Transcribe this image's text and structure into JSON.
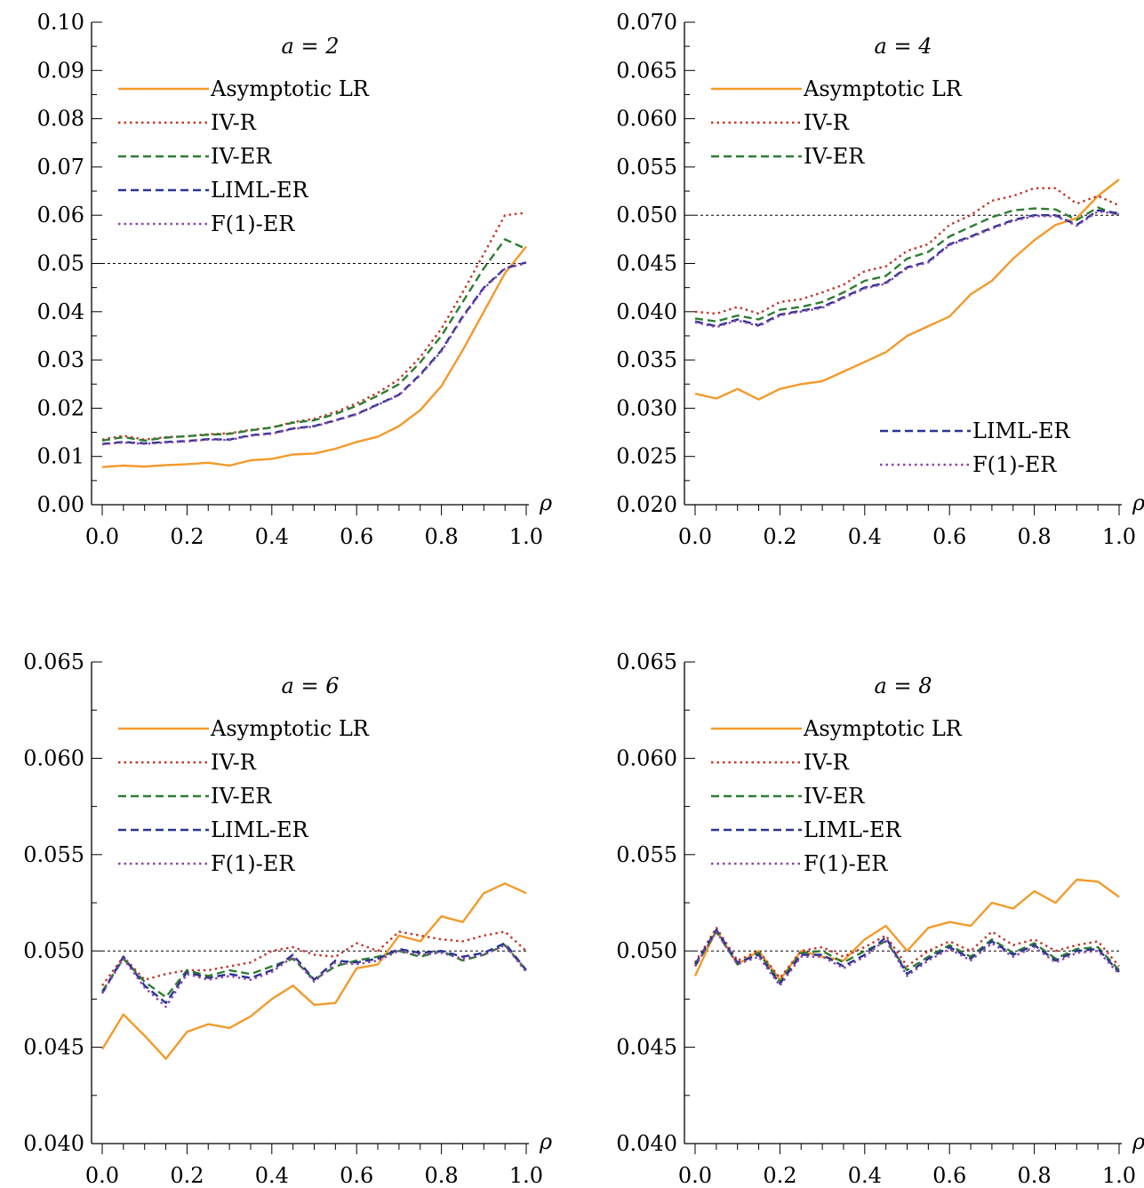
{
  "chart_data": [
    {
      "type": "line",
      "title": "a = 2",
      "xlabel": "ρ",
      "ylabel": "",
      "xlim": [
        0,
        1
      ],
      "ylim": [
        0,
        0.1
      ],
      "x_ticks": [
        "0.0",
        "0.2",
        "0.4",
        "0.6",
        "0.8",
        "1.0"
      ],
      "y_ticks": [
        "0.00",
        "0.01",
        "0.02",
        "0.03",
        "0.04",
        "0.05",
        "0.06",
        "0.07",
        "0.08",
        "0.09",
        "0.10"
      ],
      "reference_line": 0.05,
      "legend_position": "top-left",
      "legend_split": false,
      "x": [
        0.0,
        0.05,
        0.1,
        0.15,
        0.2,
        0.25,
        0.3,
        0.35,
        0.4,
        0.45,
        0.5,
        0.55,
        0.6,
        0.65,
        0.7,
        0.75,
        0.8,
        0.85,
        0.9,
        0.95,
        1.0
      ],
      "series": [
        {
          "name": "Asymptotic LR",
          "values": [
            0.0078,
            0.0081,
            0.0079,
            0.0082,
            0.0084,
            0.0087,
            0.0081,
            0.0092,
            0.0095,
            0.0104,
            0.0106,
            0.0116,
            0.013,
            0.0141,
            0.0163,
            0.0196,
            0.0246,
            0.032,
            0.04,
            0.048,
            0.0535
          ]
        },
        {
          "name": "IV-R",
          "values": [
            0.0135,
            0.0143,
            0.0135,
            0.014,
            0.0142,
            0.0146,
            0.0148,
            0.0155,
            0.016,
            0.0171,
            0.0178,
            0.0192,
            0.021,
            0.0232,
            0.026,
            0.0306,
            0.0365,
            0.044,
            0.052,
            0.06,
            0.0605
          ]
        },
        {
          "name": "IV-ER",
          "values": [
            0.0133,
            0.014,
            0.0133,
            0.0139,
            0.0142,
            0.0145,
            0.0147,
            0.0154,
            0.016,
            0.017,
            0.0175,
            0.0188,
            0.0205,
            0.0226,
            0.025,
            0.0295,
            0.035,
            0.042,
            0.049,
            0.055,
            0.053
          ]
        },
        {
          "name": "LIML-ER",
          "values": [
            0.0126,
            0.013,
            0.0127,
            0.013,
            0.0132,
            0.0136,
            0.0135,
            0.0144,
            0.0148,
            0.0158,
            0.0163,
            0.0175,
            0.0188,
            0.0208,
            0.0228,
            0.027,
            0.032,
            0.039,
            0.045,
            0.049,
            0.0502
          ]
        },
        {
          "name": "F(1)-ER",
          "values": [
            0.0125,
            0.0129,
            0.0126,
            0.0129,
            0.0131,
            0.0135,
            0.0134,
            0.0143,
            0.0147,
            0.0157,
            0.0162,
            0.0174,
            0.0187,
            0.0207,
            0.0227,
            0.0268,
            0.0318,
            0.0388,
            0.0448,
            0.0489,
            0.0501
          ]
        }
      ]
    },
    {
      "type": "line",
      "title": "a = 4",
      "xlabel": "ρ",
      "ylabel": "",
      "xlim": [
        0,
        1
      ],
      "ylim": [
        0.02,
        0.07
      ],
      "x_ticks": [
        "0.0",
        "0.2",
        "0.4",
        "0.6",
        "0.8",
        "1.0"
      ],
      "y_ticks": [
        "0.020",
        "0.025",
        "0.030",
        "0.035",
        "0.040",
        "0.045",
        "0.050",
        "0.055",
        "0.060",
        "0.065",
        "0.070"
      ],
      "reference_line": 0.05,
      "legend_position": "top-left",
      "legend_split": true,
      "x": [
        0.0,
        0.05,
        0.1,
        0.15,
        0.2,
        0.25,
        0.3,
        0.35,
        0.4,
        0.45,
        0.5,
        0.55,
        0.6,
        0.65,
        0.7,
        0.75,
        0.8,
        0.85,
        0.9,
        0.95,
        1.0
      ],
      "series": [
        {
          "name": "Asymptotic LR",
          "values": [
            0.0315,
            0.031,
            0.032,
            0.0309,
            0.032,
            0.0325,
            0.0328,
            0.0338,
            0.0348,
            0.0358,
            0.0375,
            0.0385,
            0.0395,
            0.0418,
            0.0432,
            0.0455,
            0.0474,
            0.049,
            0.0497,
            0.052,
            0.0537
          ]
        },
        {
          "name": "IV-R",
          "values": [
            0.04,
            0.0398,
            0.0405,
            0.0398,
            0.041,
            0.0413,
            0.042,
            0.0428,
            0.0442,
            0.0447,
            0.0463,
            0.047,
            0.049,
            0.05,
            0.0515,
            0.052,
            0.0528,
            0.0528,
            0.0512,
            0.052,
            0.051
          ]
        },
        {
          "name": "IV-ER",
          "values": [
            0.0393,
            0.039,
            0.0396,
            0.0392,
            0.0402,
            0.0405,
            0.041,
            0.042,
            0.0432,
            0.0437,
            0.0455,
            0.0462,
            0.0478,
            0.0488,
            0.0498,
            0.0505,
            0.0507,
            0.0506,
            0.0495,
            0.0508,
            0.05
          ]
        },
        {
          "name": "LIML-ER",
          "values": [
            0.039,
            0.0385,
            0.0392,
            0.0386,
            0.0397,
            0.0401,
            0.0405,
            0.0415,
            0.0425,
            0.043,
            0.0446,
            0.0452,
            0.047,
            0.0478,
            0.0487,
            0.0495,
            0.05,
            0.05,
            0.049,
            0.0505,
            0.0502
          ]
        },
        {
          "name": "F(1)-ER",
          "values": [
            0.0389,
            0.0384,
            0.0391,
            0.0385,
            0.0396,
            0.04,
            0.0404,
            0.0414,
            0.0424,
            0.0429,
            0.0445,
            0.0451,
            0.0469,
            0.0477,
            0.0486,
            0.0494,
            0.0499,
            0.0499,
            0.0489,
            0.0504,
            0.0501
          ]
        }
      ]
    },
    {
      "type": "line",
      "title": "a = 6",
      "xlabel": "ρ",
      "ylabel": "",
      "xlim": [
        0,
        1
      ],
      "ylim": [
        0.04,
        0.065
      ],
      "x_ticks": [
        "0.0",
        "0.2",
        "0.4",
        "0.6",
        "0.8",
        "1.0"
      ],
      "y_ticks": [
        "0.040",
        "0.045",
        "0.050",
        "0.055",
        "0.060",
        "0.065"
      ],
      "reference_line": 0.05,
      "legend_position": "top-left",
      "legend_split": false,
      "x": [
        0.0,
        0.05,
        0.1,
        0.15,
        0.2,
        0.25,
        0.3,
        0.35,
        0.4,
        0.45,
        0.5,
        0.55,
        0.6,
        0.65,
        0.7,
        0.75,
        0.8,
        0.85,
        0.9,
        0.95,
        1.0
      ],
      "series": [
        {
          "name": "Asymptotic LR",
          "values": [
            0.0449,
            0.0467,
            0.0456,
            0.0444,
            0.0458,
            0.0462,
            0.046,
            0.0466,
            0.0475,
            0.0482,
            0.0472,
            0.0473,
            0.0491,
            0.0493,
            0.0508,
            0.0505,
            0.0518,
            0.0515,
            0.053,
            0.0535,
            0.053
          ]
        },
        {
          "name": "IV-R",
          "values": [
            0.0482,
            0.0497,
            0.0485,
            0.0488,
            0.049,
            0.049,
            0.0492,
            0.0494,
            0.05,
            0.0502,
            0.0498,
            0.0497,
            0.0504,
            0.05,
            0.051,
            0.0508,
            0.0506,
            0.0505,
            0.0508,
            0.051,
            0.05
          ]
        },
        {
          "name": "IV-ER",
          "values": [
            0.0479,
            0.0496,
            0.0484,
            0.0476,
            0.049,
            0.0487,
            0.049,
            0.0488,
            0.0492,
            0.0496,
            0.0485,
            0.0492,
            0.0495,
            0.0497,
            0.05,
            0.0497,
            0.05,
            0.0495,
            0.0498,
            0.0503,
            0.049
          ]
        },
        {
          "name": "LIML-ER",
          "values": [
            0.0478,
            0.0497,
            0.0482,
            0.0473,
            0.0489,
            0.0486,
            0.0488,
            0.0486,
            0.049,
            0.0498,
            0.0485,
            0.0495,
            0.0494,
            0.0496,
            0.0501,
            0.0499,
            0.05,
            0.0497,
            0.0499,
            0.0504,
            0.049
          ]
        },
        {
          "name": "F(1)-ER",
          "values": [
            0.0478,
            0.0496,
            0.0481,
            0.0471,
            0.0488,
            0.0485,
            0.0487,
            0.0485,
            0.0489,
            0.0497,
            0.0484,
            0.0494,
            0.0493,
            0.0495,
            0.05,
            0.0498,
            0.0499,
            0.0496,
            0.0498,
            0.0503,
            0.0489
          ]
        }
      ]
    },
    {
      "type": "line",
      "title": "a = 8",
      "xlabel": "ρ",
      "ylabel": "",
      "xlim": [
        0,
        1
      ],
      "ylim": [
        0.04,
        0.065
      ],
      "x_ticks": [
        "0.0",
        "0.2",
        "0.4",
        "0.6",
        "0.8",
        "1.0"
      ],
      "y_ticks": [
        "0.040",
        "0.045",
        "0.050",
        "0.055",
        "0.060",
        "0.065"
      ],
      "reference_line": 0.05,
      "legend_position": "top-left",
      "legend_split": false,
      "x": [
        0.0,
        0.05,
        0.1,
        0.15,
        0.2,
        0.25,
        0.3,
        0.35,
        0.4,
        0.45,
        0.5,
        0.55,
        0.6,
        0.65,
        0.7,
        0.75,
        0.8,
        0.85,
        0.9,
        0.95,
        1.0
      ],
      "series": [
        {
          "name": "Asymptotic LR",
          "values": [
            0.0487,
            0.0511,
            0.0493,
            0.05,
            0.0485,
            0.05,
            0.0497,
            0.0495,
            0.0506,
            0.0513,
            0.05,
            0.0512,
            0.0515,
            0.0513,
            0.0525,
            0.0522,
            0.0531,
            0.0525,
            0.0537,
            0.0536,
            0.0528
          ]
        },
        {
          "name": "IV-R",
          "values": [
            0.0494,
            0.0512,
            0.0495,
            0.05,
            0.0486,
            0.05,
            0.0502,
            0.0497,
            0.0502,
            0.0508,
            0.0492,
            0.05,
            0.0505,
            0.05,
            0.051,
            0.0503,
            0.0506,
            0.05,
            0.0503,
            0.0505,
            0.0492
          ]
        },
        {
          "name": "IV-ER",
          "values": [
            0.0492,
            0.051,
            0.0493,
            0.0499,
            0.0484,
            0.0499,
            0.05,
            0.0494,
            0.05,
            0.0505,
            0.049,
            0.0497,
            0.0503,
            0.0497,
            0.0506,
            0.0499,
            0.0504,
            0.0496,
            0.0501,
            0.0502,
            0.049
          ]
        },
        {
          "name": "LIML-ER",
          "values": [
            0.0493,
            0.0511,
            0.0494,
            0.0498,
            0.0483,
            0.0498,
            0.0498,
            0.0492,
            0.0498,
            0.0507,
            0.0488,
            0.0496,
            0.0502,
            0.0496,
            0.0505,
            0.0498,
            0.0503,
            0.0495,
            0.05,
            0.0501,
            0.0489
          ]
        },
        {
          "name": "F(1)-ER",
          "values": [
            0.0492,
            0.051,
            0.0493,
            0.0497,
            0.0482,
            0.0497,
            0.0497,
            0.0491,
            0.0497,
            0.0506,
            0.0487,
            0.0495,
            0.0501,
            0.0495,
            0.0504,
            0.0497,
            0.0502,
            0.0494,
            0.0499,
            0.05,
            0.0488
          ]
        }
      ]
    }
  ],
  "series_styles": [
    {
      "name": "Asymptotic LR",
      "color": "#f39a2b",
      "dash": "solid"
    },
    {
      "name": "IV-R",
      "color": "#c0392b",
      "dash": "dotted"
    },
    {
      "name": "IV-ER",
      "color": "#2e7d32",
      "dash": "dashed"
    },
    {
      "name": "LIML-ER",
      "color": "#283593",
      "dash": "dashed"
    },
    {
      "name": "F(1)-ER",
      "color": "#8e44ad",
      "dash": "dotted"
    }
  ]
}
